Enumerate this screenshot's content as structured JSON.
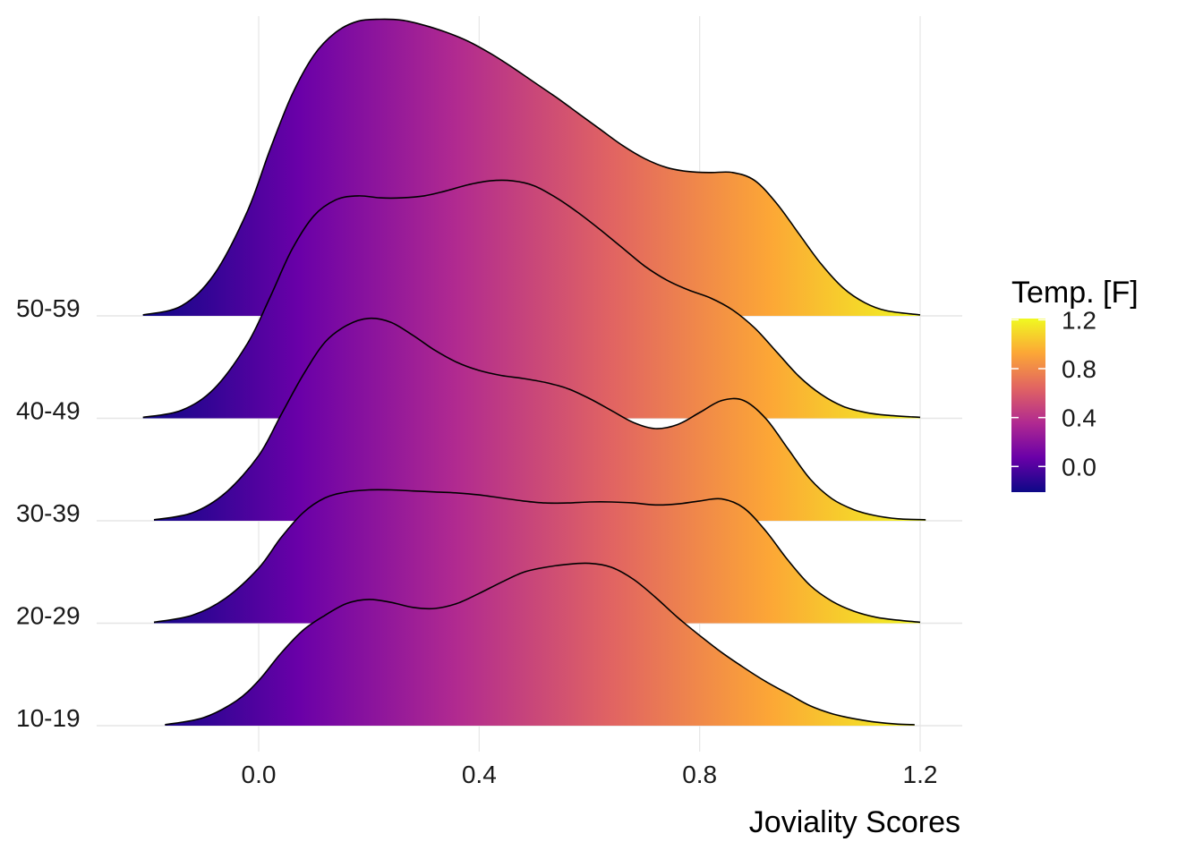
{
  "chart_data": {
    "type": "ridgeline",
    "xlabel": "Joviality Scores",
    "ylabel": "",
    "title": "",
    "x_ticks": [
      "0.0",
      "0.4",
      "0.8",
      "1.2"
    ],
    "x_tick_values": [
      0.0,
      0.4,
      0.8,
      1.2
    ],
    "xlim": [
      -0.28,
      1.28
    ],
    "grid": true,
    "categories": [
      "10-19",
      "20-29",
      "30-39",
      "40-49",
      "50-59"
    ],
    "series": [
      {
        "label": "10-19",
        "x": [
          -0.17,
          -0.1,
          -0.04,
          0.0,
          0.04,
          0.08,
          0.12,
          0.16,
          0.2,
          0.24,
          0.28,
          0.32,
          0.36,
          0.4,
          0.44,
          0.48,
          0.52,
          0.56,
          0.6,
          0.64,
          0.68,
          0.72,
          0.76,
          0.8,
          0.84,
          0.88,
          0.92,
          0.96,
          1.0,
          1.04,
          1.08,
          1.12,
          1.16,
          1.19
        ],
        "density": [
          0.01,
          0.08,
          0.25,
          0.45,
          0.72,
          0.95,
          1.1,
          1.22,
          1.26,
          1.23,
          1.18,
          1.17,
          1.22,
          1.32,
          1.43,
          1.53,
          1.58,
          1.61,
          1.62,
          1.58,
          1.46,
          1.28,
          1.08,
          0.9,
          0.73,
          0.58,
          0.44,
          0.32,
          0.2,
          0.12,
          0.07,
          0.035,
          0.015,
          0.01
        ]
      },
      {
        "label": "20-29",
        "x": [
          -0.19,
          -0.12,
          -0.06,
          0.0,
          0.04,
          0.08,
          0.12,
          0.16,
          0.2,
          0.24,
          0.28,
          0.32,
          0.36,
          0.4,
          0.44,
          0.48,
          0.52,
          0.56,
          0.6,
          0.64,
          0.68,
          0.72,
          0.76,
          0.8,
          0.84,
          0.88,
          0.92,
          0.96,
          1.0,
          1.04,
          1.08,
          1.12,
          1.16,
          1.2
        ],
        "density": [
          0.01,
          0.08,
          0.25,
          0.55,
          0.85,
          1.1,
          1.25,
          1.31,
          1.33,
          1.33,
          1.32,
          1.31,
          1.3,
          1.28,
          1.25,
          1.22,
          1.2,
          1.2,
          1.21,
          1.21,
          1.2,
          1.18,
          1.19,
          1.22,
          1.24,
          1.15,
          0.92,
          0.63,
          0.38,
          0.22,
          0.12,
          0.06,
          0.03,
          0.01
        ]
      },
      {
        "label": "30-39",
        "x": [
          -0.19,
          -0.12,
          -0.06,
          0.0,
          0.04,
          0.08,
          0.12,
          0.16,
          0.2,
          0.24,
          0.28,
          0.32,
          0.36,
          0.4,
          0.44,
          0.48,
          0.52,
          0.56,
          0.6,
          0.64,
          0.68,
          0.72,
          0.76,
          0.8,
          0.84,
          0.88,
          0.92,
          0.96,
          1.0,
          1.04,
          1.08,
          1.12,
          1.16,
          1.21
        ],
        "density": [
          0.01,
          0.08,
          0.28,
          0.65,
          1.05,
          1.45,
          1.78,
          1.95,
          2.02,
          1.98,
          1.85,
          1.7,
          1.58,
          1.5,
          1.45,
          1.42,
          1.38,
          1.32,
          1.22,
          1.1,
          0.98,
          0.92,
          0.96,
          1.08,
          1.2,
          1.2,
          1.02,
          0.72,
          0.42,
          0.22,
          0.11,
          0.05,
          0.02,
          0.01
        ]
      },
      {
        "label": "40-49",
        "x": [
          -0.21,
          -0.14,
          -0.08,
          -0.02,
          0.02,
          0.06,
          0.1,
          0.14,
          0.18,
          0.22,
          0.26,
          0.3,
          0.34,
          0.38,
          0.42,
          0.46,
          0.5,
          0.54,
          0.58,
          0.62,
          0.66,
          0.7,
          0.74,
          0.78,
          0.82,
          0.86,
          0.9,
          0.94,
          0.98,
          1.02,
          1.06,
          1.1,
          1.14,
          1.2
        ],
        "density": [
          0.01,
          0.08,
          0.3,
          0.75,
          1.2,
          1.68,
          2.02,
          2.18,
          2.22,
          2.2,
          2.2,
          2.22,
          2.27,
          2.33,
          2.37,
          2.37,
          2.32,
          2.2,
          2.05,
          1.88,
          1.7,
          1.52,
          1.38,
          1.28,
          1.2,
          1.08,
          0.9,
          0.66,
          0.42,
          0.24,
          0.12,
          0.06,
          0.03,
          0.01
        ]
      },
      {
        "label": "50-59",
        "x": [
          -0.21,
          -0.14,
          -0.08,
          -0.02,
          0.02,
          0.06,
          0.1,
          0.14,
          0.18,
          0.22,
          0.26,
          0.3,
          0.34,
          0.38,
          0.42,
          0.46,
          0.5,
          0.54,
          0.58,
          0.62,
          0.66,
          0.7,
          0.74,
          0.78,
          0.82,
          0.86,
          0.9,
          0.94,
          0.98,
          1.02,
          1.06,
          1.1,
          1.14,
          1.2
        ],
        "density": [
          0.01,
          0.1,
          0.42,
          1.05,
          1.65,
          2.2,
          2.6,
          2.83,
          2.94,
          2.96,
          2.95,
          2.9,
          2.83,
          2.74,
          2.62,
          2.48,
          2.33,
          2.18,
          2.02,
          1.86,
          1.7,
          1.57,
          1.48,
          1.44,
          1.43,
          1.43,
          1.35,
          1.12,
          0.82,
          0.52,
          0.28,
          0.13,
          0.05,
          0.01
        ]
      }
    ],
    "legend": {
      "title": "Temp. [F]",
      "position": "right",
      "labels": [
        "1.2",
        "0.8",
        "0.4",
        "0.0"
      ],
      "label_values": [
        1.2,
        0.8,
        0.4,
        0.0
      ],
      "range": [
        -0.21,
        1.21
      ],
      "colors": [
        "#0d0887",
        "#6a00a8",
        "#b12a90",
        "#e16462",
        "#fca636",
        "#f0f921"
      ]
    }
  }
}
